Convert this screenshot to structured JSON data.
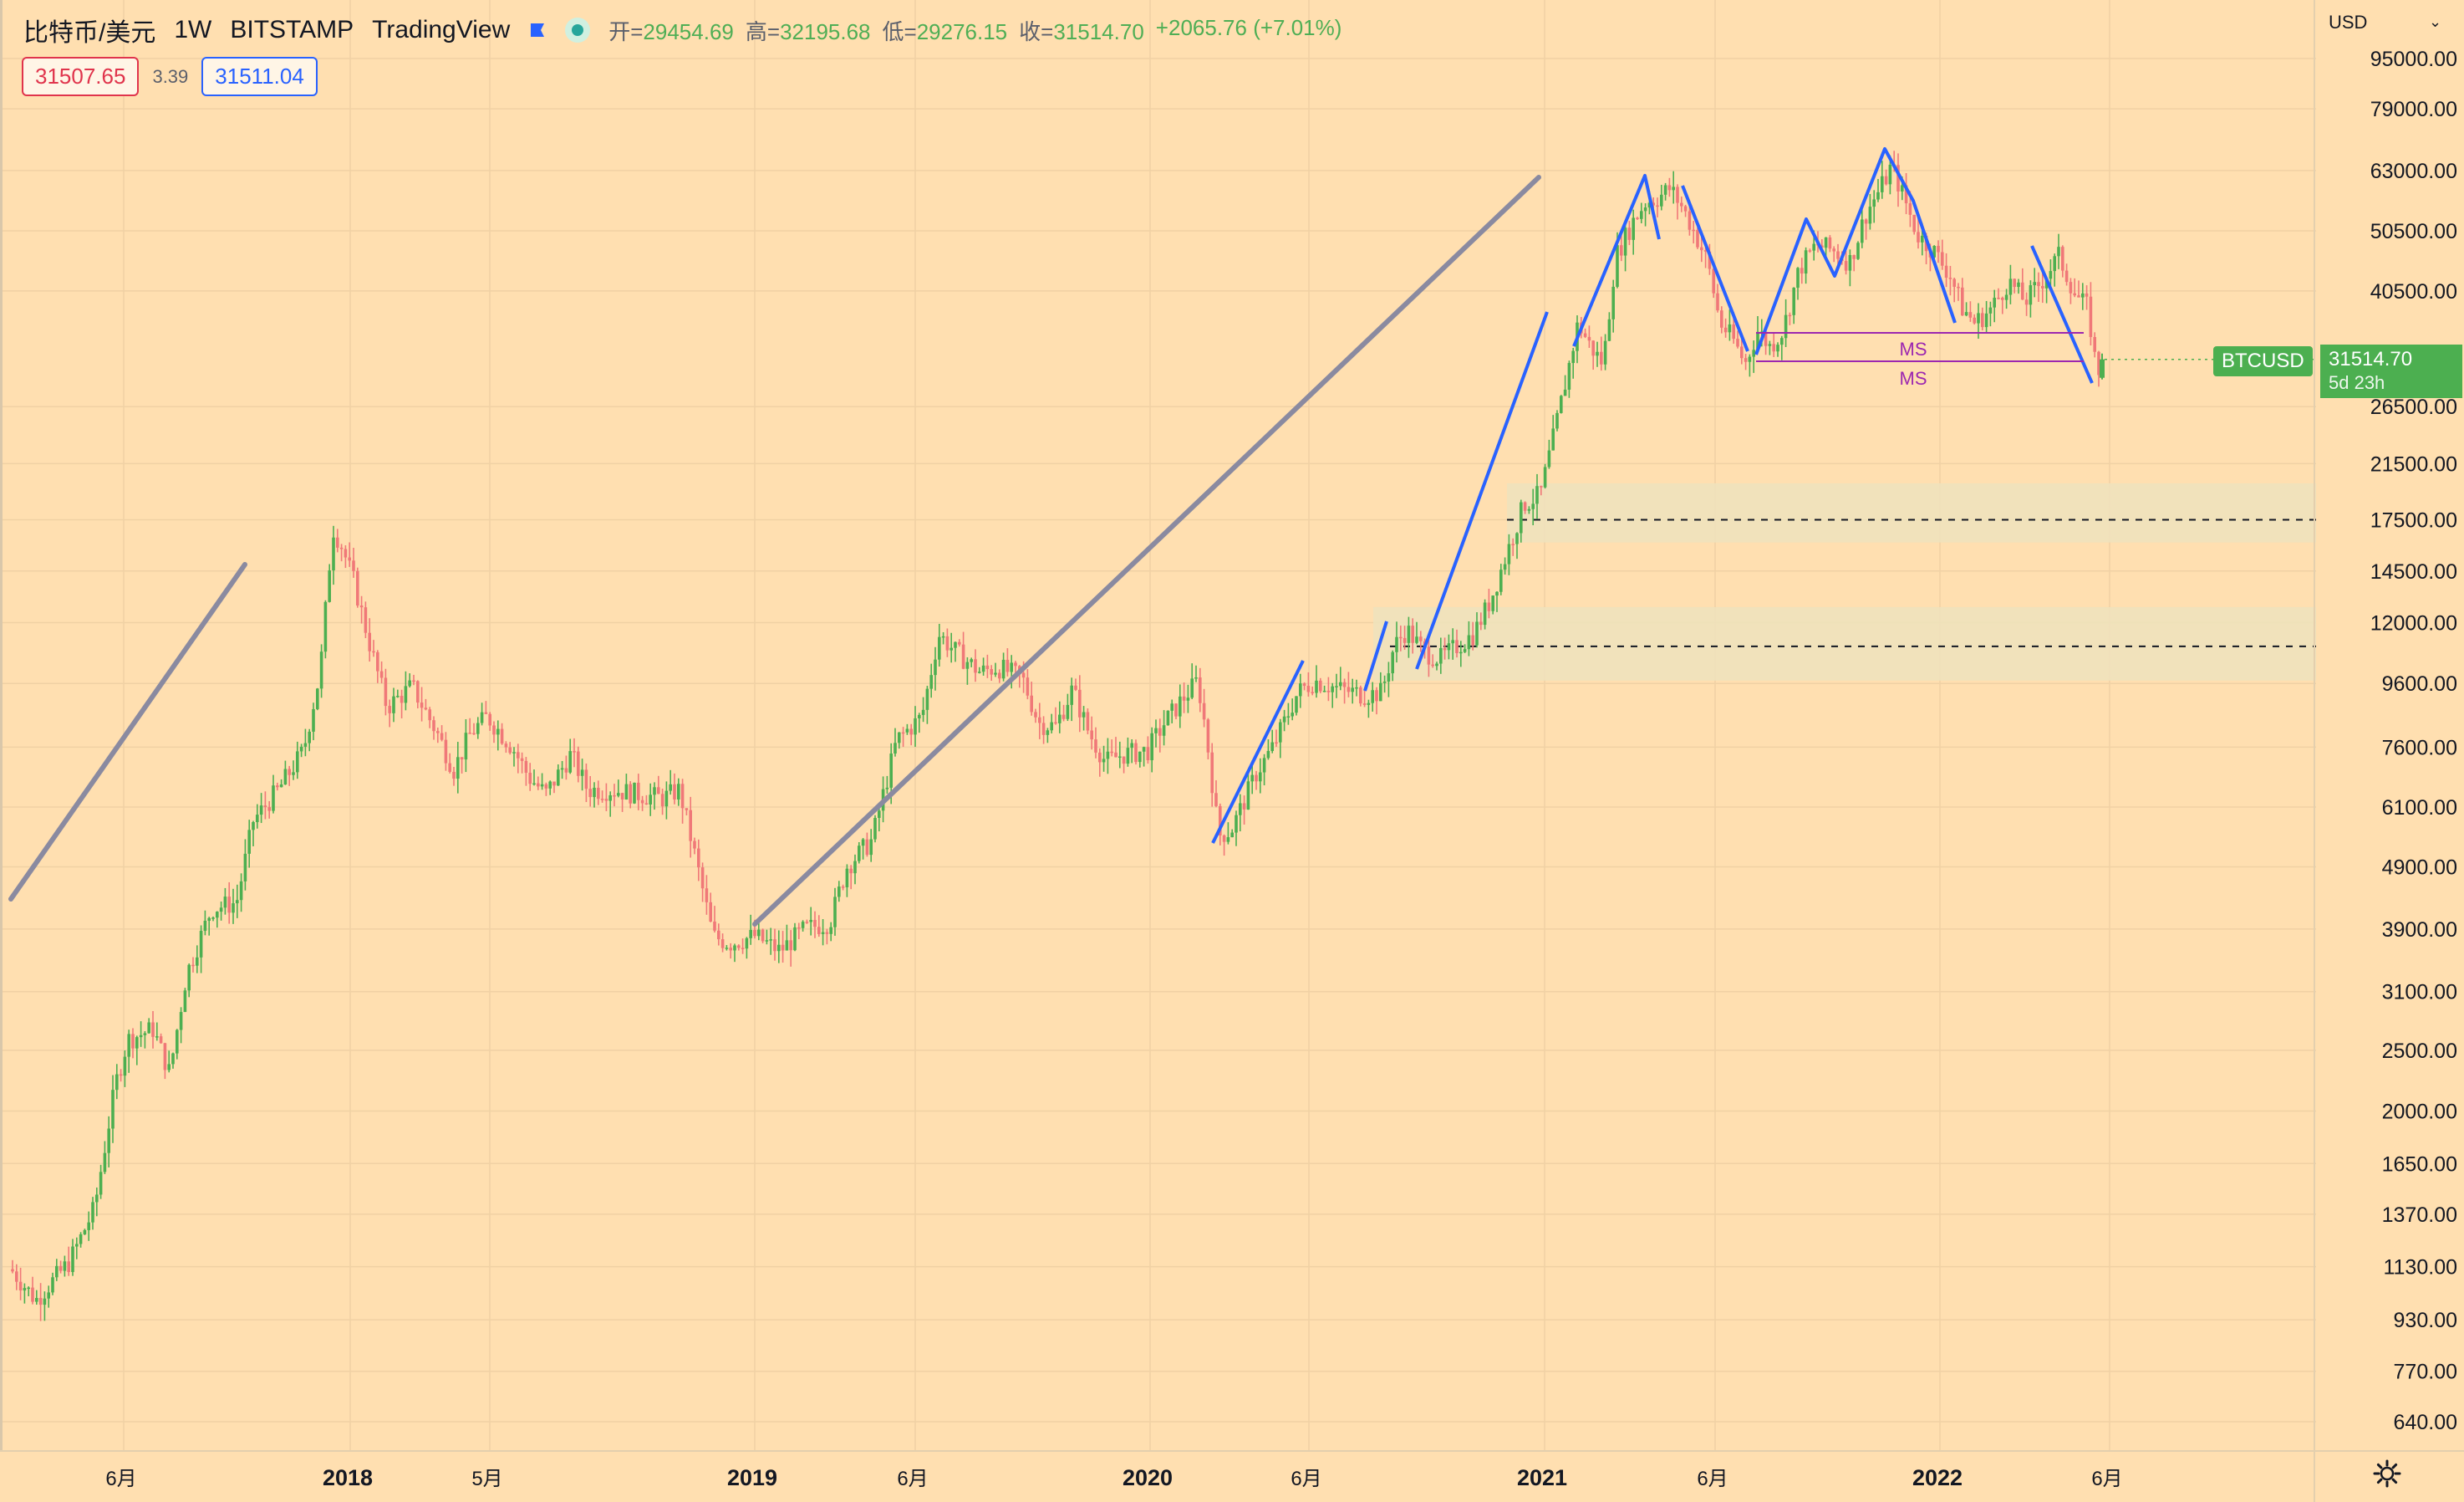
{
  "header": {
    "symbol": "比特币/美元",
    "interval": "1W",
    "exchange": "BITSTAMP",
    "provider": "TradingView",
    "open_label": "开=",
    "open": "29454.69",
    "high_label": "高=",
    "high": "32195.68",
    "low_label": "低=",
    "low": "29276.15",
    "close_label": "收=",
    "close": "31514.70",
    "change": "+2065.76 (+7.01%)"
  },
  "trade": {
    "sell": "31507.65",
    "spread": "3.39",
    "buy": "31511.04"
  },
  "price_axis": {
    "currency": "USD",
    "ticks": [
      "95000.00",
      "79000.00",
      "63000.00",
      "50500.00",
      "40500.00",
      "26500.00",
      "21500.00",
      "17500.00",
      "14500.00",
      "12000.00",
      "9600.00",
      "7600.00",
      "6100.00",
      "4900.00",
      "3900.00",
      "3100.00",
      "2500.00",
      "2000.00",
      "1650.00",
      "1370.00",
      "1130.00",
      "930.00",
      "770.00",
      "640.00"
    ]
  },
  "time_axis": {
    "labels": [
      "6月",
      "2018",
      "5月",
      "2019",
      "6月",
      "2020",
      "6月",
      "2021",
      "6月",
      "2022",
      "6月"
    ]
  },
  "last": {
    "label": "BTCUSD",
    "price": "31514.70",
    "countdown": "5d 23h"
  },
  "annotations": {
    "ms1": "MS",
    "ms2": "MS"
  },
  "colors": {
    "background": "#ffdfb0",
    "up": "#4caf50",
    "down": "#f07878",
    "trendline": "#8a8aa0",
    "zigzag": "#2962ff",
    "ms_line": "#9c27b0",
    "zone": "#efe3bd"
  },
  "icons": {
    "flag": "flag-icon",
    "status": "market-open-dot-icon",
    "settings": "gear-icon"
  }
}
